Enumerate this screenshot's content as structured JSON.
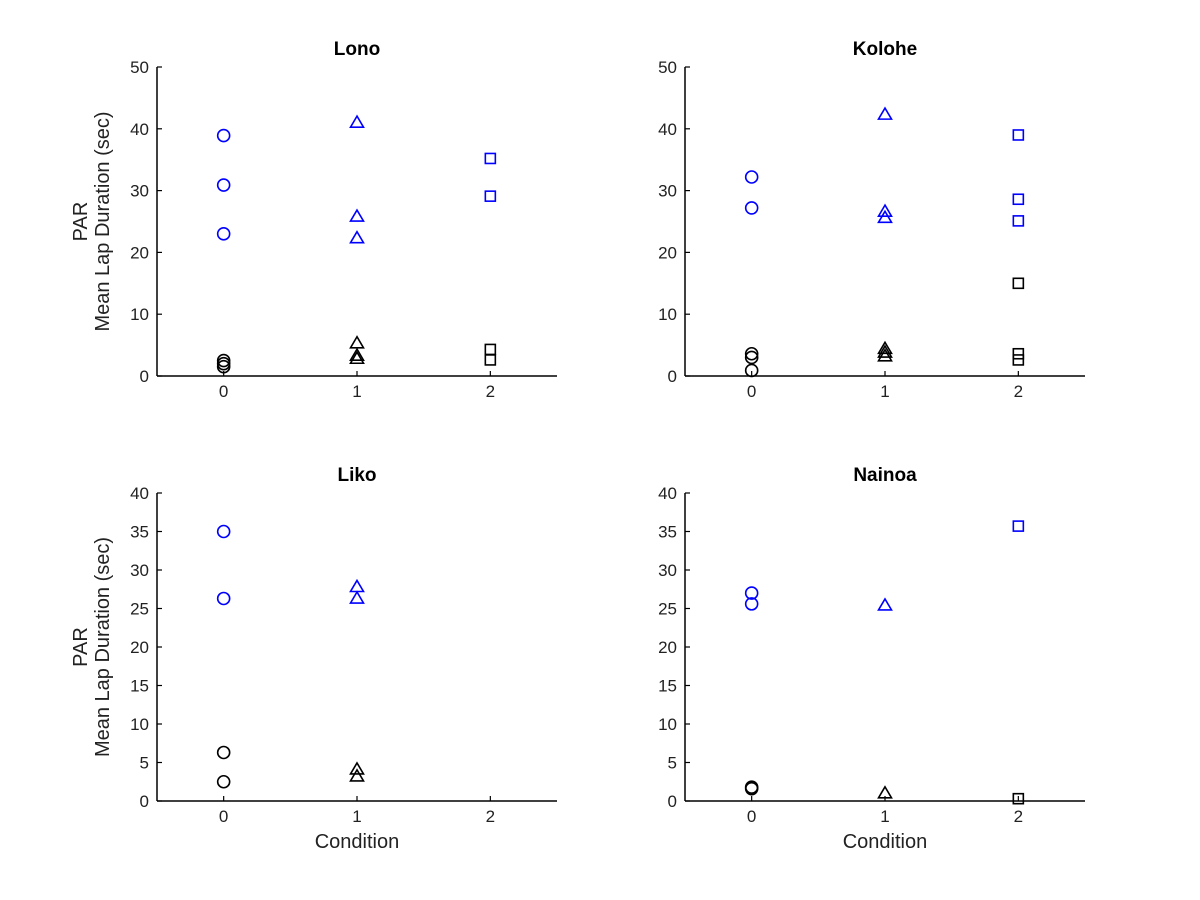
{
  "chart_data": [
    {
      "type": "scatter",
      "title": "Lono",
      "xlabel": "",
      "ylabel_lines": [
        "PAR",
        "Mean Lap Duration (sec)"
      ],
      "xlim": [
        -0.5,
        2.5
      ],
      "ylim": [
        0,
        50
      ],
      "xticks": [
        0,
        1,
        2
      ],
      "yticks": [
        0,
        10,
        20,
        30,
        40,
        50
      ],
      "points": [
        {
          "x": 0,
          "y": 38.9,
          "marker": "circle",
          "color": "#0000ff"
        },
        {
          "x": 0,
          "y": 30.9,
          "marker": "circle",
          "color": "#0000ff"
        },
        {
          "x": 0,
          "y": 23.0,
          "marker": "circle",
          "color": "#0000ff"
        },
        {
          "x": 0,
          "y": 2.5,
          "marker": "circle",
          "color": "#000000"
        },
        {
          "x": 0,
          "y": 2.0,
          "marker": "circle",
          "color": "#000000"
        },
        {
          "x": 0,
          "y": 1.5,
          "marker": "circle",
          "color": "#000000"
        },
        {
          "x": 1,
          "y": 41.0,
          "marker": "triangle",
          "color": "#0000ff"
        },
        {
          "x": 1,
          "y": 25.8,
          "marker": "triangle",
          "color": "#0000ff"
        },
        {
          "x": 1,
          "y": 22.3,
          "marker": "triangle",
          "color": "#0000ff"
        },
        {
          "x": 1,
          "y": 5.3,
          "marker": "triangle",
          "color": "#000000"
        },
        {
          "x": 1,
          "y": 3.3,
          "marker": "triangle",
          "color": "#000000"
        },
        {
          "x": 1,
          "y": 2.8,
          "marker": "triangle",
          "color": "#000000"
        },
        {
          "x": 2,
          "y": 35.2,
          "marker": "square",
          "color": "#0000ff"
        },
        {
          "x": 2,
          "y": 29.1,
          "marker": "square",
          "color": "#0000ff"
        },
        {
          "x": 2,
          "y": 4.3,
          "marker": "square",
          "color": "#000000"
        },
        {
          "x": 2,
          "y": 2.6,
          "marker": "square",
          "color": "#000000"
        }
      ]
    },
    {
      "type": "scatter",
      "title": "Kolohe",
      "xlabel": "",
      "ylabel_lines": [],
      "xlim": [
        -0.5,
        2.5
      ],
      "ylim": [
        0,
        50
      ],
      "xticks": [
        0,
        1,
        2
      ],
      "yticks": [
        0,
        10,
        20,
        30,
        40,
        50
      ],
      "points": [
        {
          "x": 0,
          "y": 32.2,
          "marker": "circle",
          "color": "#0000ff"
        },
        {
          "x": 0,
          "y": 27.2,
          "marker": "circle",
          "color": "#0000ff"
        },
        {
          "x": 0,
          "y": 3.6,
          "marker": "circle",
          "color": "#000000"
        },
        {
          "x": 0,
          "y": 3.0,
          "marker": "circle",
          "color": "#000000"
        },
        {
          "x": 0,
          "y": 0.9,
          "marker": "circle",
          "color": "#000000"
        },
        {
          "x": 1,
          "y": 42.3,
          "marker": "triangle",
          "color": "#0000ff"
        },
        {
          "x": 1,
          "y": 26.6,
          "marker": "triangle",
          "color": "#0000ff"
        },
        {
          "x": 1,
          "y": 25.6,
          "marker": "triangle",
          "color": "#0000ff"
        },
        {
          "x": 1,
          "y": 4.4,
          "marker": "triangle",
          "color": "#000000"
        },
        {
          "x": 1,
          "y": 3.8,
          "marker": "triangle",
          "color": "#000000"
        },
        {
          "x": 1,
          "y": 3.2,
          "marker": "triangle",
          "color": "#000000"
        },
        {
          "x": 2,
          "y": 39.0,
          "marker": "square",
          "color": "#0000ff"
        },
        {
          "x": 2,
          "y": 28.6,
          "marker": "square",
          "color": "#0000ff"
        },
        {
          "x": 2,
          "y": 25.1,
          "marker": "square",
          "color": "#0000ff"
        },
        {
          "x": 2,
          "y": 15.0,
          "marker": "square",
          "color": "#000000"
        },
        {
          "x": 2,
          "y": 3.6,
          "marker": "square",
          "color": "#000000"
        },
        {
          "x": 2,
          "y": 2.6,
          "marker": "square",
          "color": "#000000"
        }
      ]
    },
    {
      "type": "scatter",
      "title": "Liko",
      "xlabel": "Condition",
      "ylabel_lines": [
        "PAR",
        "Mean Lap Duration (sec)"
      ],
      "xlim": [
        -0.5,
        2.5
      ],
      "ylim": [
        0,
        40
      ],
      "xticks": [
        0,
        1,
        2
      ],
      "yticks": [
        0,
        5,
        10,
        15,
        20,
        25,
        30,
        35,
        40
      ],
      "points": [
        {
          "x": 0,
          "y": 35.0,
          "marker": "circle",
          "color": "#0000ff"
        },
        {
          "x": 0,
          "y": 26.3,
          "marker": "circle",
          "color": "#0000ff"
        },
        {
          "x": 0,
          "y": 6.3,
          "marker": "circle",
          "color": "#000000"
        },
        {
          "x": 0,
          "y": 2.5,
          "marker": "circle",
          "color": "#000000"
        },
        {
          "x": 1,
          "y": 27.8,
          "marker": "triangle",
          "color": "#0000ff"
        },
        {
          "x": 1,
          "y": 26.3,
          "marker": "triangle",
          "color": "#0000ff"
        },
        {
          "x": 1,
          "y": 4.1,
          "marker": "triangle",
          "color": "#000000"
        },
        {
          "x": 1,
          "y": 3.2,
          "marker": "triangle",
          "color": "#000000"
        }
      ]
    },
    {
      "type": "scatter",
      "title": "Nainoa",
      "xlabel": "Condition",
      "ylabel_lines": [],
      "xlim": [
        -0.5,
        2.5
      ],
      "ylim": [
        0,
        40
      ],
      "xticks": [
        0,
        1,
        2
      ],
      "yticks": [
        0,
        5,
        10,
        15,
        20,
        25,
        30,
        35,
        40
      ],
      "points": [
        {
          "x": 0,
          "y": 27.0,
          "marker": "circle",
          "color": "#0000ff"
        },
        {
          "x": 0,
          "y": 25.6,
          "marker": "circle",
          "color": "#0000ff"
        },
        {
          "x": 0,
          "y": 1.8,
          "marker": "circle",
          "color": "#000000"
        },
        {
          "x": 0,
          "y": 1.6,
          "marker": "circle",
          "color": "#000000"
        },
        {
          "x": 1,
          "y": 25.4,
          "marker": "triangle",
          "color": "#0000ff"
        },
        {
          "x": 1,
          "y": 1.0,
          "marker": "triangle",
          "color": "#000000"
        },
        {
          "x": 2,
          "y": 35.7,
          "marker": "square",
          "color": "#0000ff"
        },
        {
          "x": 2,
          "y": 0.3,
          "marker": "square",
          "color": "#000000"
        }
      ]
    }
  ]
}
